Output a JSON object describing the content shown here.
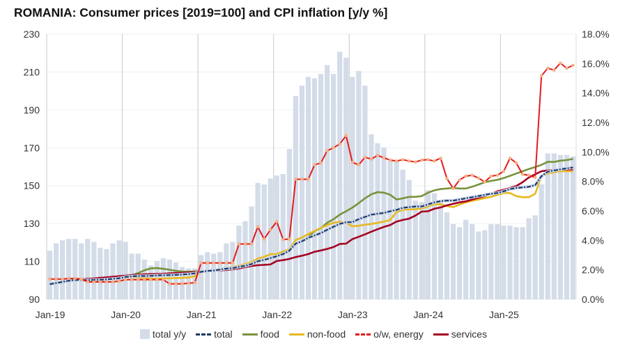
{
  "chart_data": {
    "type": "bar+line",
    "title": "ROMANIA: Consumer prices [2019=100] and CPI inflation [y/y %]",
    "x_start": "Jan-19",
    "x_end": "Dec-25",
    "x_tick_labels": [
      "Jan-19",
      "Jan-20",
      "Jan-21",
      "Jan-22",
      "Jan-23",
      "Jan-24",
      "Jan-25"
    ],
    "y_left": {
      "range": [
        90,
        230
      ],
      "ticks": [
        "90",
        "110",
        "130",
        "150",
        "170",
        "190",
        "210",
        "230"
      ]
    },
    "y_right": {
      "range": [
        0,
        18
      ],
      "ticks": [
        "0.0%",
        "2.0%",
        "4.0%",
        "6.0%",
        "8.0%",
        "10.0%",
        "12.0%",
        "14.0%",
        "16.0%",
        "18.0%"
      ]
    },
    "grid": "horizontal light, vertical at year starts",
    "legend_position": "bottom",
    "series": [
      {
        "name": "total y/y",
        "type": "bar",
        "axis": "right",
        "color": "#d3dce8",
        "values": [
          3.3,
          3.8,
          4.0,
          4.1,
          4.1,
          3.8,
          4.1,
          3.9,
          3.5,
          3.4,
          3.8,
          4.0,
          3.9,
          3.1,
          3.1,
          2.7,
          2.3,
          2.6,
          2.8,
          2.7,
          2.5,
          2.2,
          2.1,
          2.1,
          3.0,
          3.2,
          3.1,
          3.2,
          3.8,
          3.9,
          5.0,
          5.3,
          6.3,
          7.9,
          7.8,
          8.2,
          8.4,
          8.5,
          10.2,
          13.8,
          14.5,
          15.1,
          15.0,
          15.3,
          15.9,
          15.3,
          16.8,
          16.4,
          15.1,
          15.5,
          14.5,
          11.2,
          10.6,
          10.3,
          9.4,
          9.4,
          8.8,
          8.1,
          6.7,
          6.6,
          7.4,
          7.2,
          6.6,
          5.9,
          5.1,
          4.9,
          5.4,
          5.1,
          4.6,
          4.7,
          5.1,
          5.1,
          5.0,
          5.0,
          4.9,
          4.9,
          5.5,
          5.7,
          7.8,
          9.9,
          9.9,
          9.8,
          9.8,
          9.7
        ]
      },
      {
        "name": "total",
        "type": "line",
        "axis": "left",
        "color": "#1f3864",
        "values": [
          98,
          98.6,
          99.2,
          99.8,
          100.2,
          100.2,
          100.1,
          100.2,
          100.3,
          100.5,
          100.8,
          101.1,
          101.8,
          102.1,
          102.3,
          102.3,
          102.4,
          102.6,
          102.7,
          102.8,
          102.9,
          103.1,
          103.3,
          103.7,
          104.5,
          105,
          105.2,
          105.7,
          106.2,
          106.4,
          107.2,
          107.7,
          108.6,
          110.1,
          110.8,
          111.8,
          112.7,
          113.9,
          115.7,
          119.4,
          120.6,
          122.5,
          123.7,
          125,
          126.7,
          128.3,
          129.8,
          130.7,
          130.7,
          132.3,
          133.5,
          134.7,
          135.2,
          135.6,
          136.5,
          137.2,
          138.3,
          138.7,
          139,
          139,
          140.1,
          141.2,
          141.8,
          142.1,
          142.1,
          142.7,
          143.3,
          143.9,
          144.5,
          145.1,
          145.7,
          146.1,
          147,
          148.2,
          148.8,
          149.1,
          149.4,
          150.3,
          155,
          157.4,
          158,
          158.6,
          159.1,
          159.6
        ]
      },
      {
        "name": "food",
        "type": "line",
        "axis": "left",
        "color": "#77933c",
        "values": [
          98,
          98.8,
          99.5,
          100.2,
          100.5,
          100.3,
          100,
          100,
          100.2,
          100.5,
          100.8,
          101.2,
          101.9,
          102.7,
          103.8,
          105.3,
          106.3,
          106.5,
          106.1,
          105.6,
          105,
          104.7,
          104.6,
          104.7,
          104.8,
          105,
          105.3,
          105.9,
          106.5,
          107,
          107.7,
          108.3,
          109.2,
          110.2,
          111,
          111.8,
          112.5,
          113.6,
          115.3,
          119,
          120.5,
          123,
          126,
          127.5,
          130.4,
          132.3,
          134.7,
          136.5,
          138.4,
          140.8,
          143.3,
          145.4,
          146.6,
          146.3,
          145.2,
          142.7,
          143.3,
          144.1,
          144.1,
          144.5,
          146.3,
          147.5,
          148.2,
          148.5,
          148.8,
          148.5,
          148.5,
          149.4,
          150.6,
          151.8,
          152.5,
          153.1,
          154,
          155.2,
          156.4,
          157.6,
          158.8,
          159.8,
          161,
          162.6,
          162.5,
          163.2,
          163.5,
          164.1
        ]
      },
      {
        "name": "non-food",
        "type": "line",
        "axis": "left",
        "color": "#e6b91e",
        "values": [
          98,
          98.5,
          99,
          99.6,
          100.1,
          100.1,
          100,
          100.1,
          100.2,
          100.4,
          100.7,
          101,
          101.5,
          101.7,
          101.6,
          101.2,
          100.9,
          100.9,
          101,
          101.1,
          101.2,
          101.3,
          101.5,
          102.2,
          104.4,
          105.1,
          105.5,
          106,
          106.5,
          107,
          107.8,
          108.6,
          109.6,
          111.5,
          112.4,
          113.8,
          113.9,
          115.2,
          116.5,
          121.3,
          122.6,
          124.5,
          126.1,
          127.7,
          129.2,
          130.4,
          131,
          130.4,
          128.6,
          128.8,
          129.4,
          129.8,
          130.4,
          131,
          131.9,
          136,
          137.2,
          137.5,
          137.6,
          138,
          139,
          140.2,
          140.2,
          139.2,
          138.7,
          140,
          141.2,
          142,
          142.7,
          143.4,
          144.1,
          145.1,
          146.1,
          146.1,
          144.5,
          143.9,
          143.9,
          145.7,
          155,
          156.4,
          157.1,
          157.6,
          157.6,
          157.6
        ]
      },
      {
        "name": "o/w, energy",
        "type": "line",
        "axis": "left",
        "color": "#e41a1c",
        "marker_color": "#f4b183",
        "values": [
          100.7,
          100.7,
          100.7,
          101,
          101,
          100.7,
          99.2,
          99.2,
          99.2,
          99.2,
          99.2,
          99.6,
          100.4,
          100.4,
          100.4,
          100.4,
          100.4,
          100.4,
          100.4,
          98.2,
          98.2,
          98.2,
          98.5,
          98.8,
          109.2,
          109.2,
          109.2,
          109.2,
          109.2,
          109.2,
          119.2,
          119.2,
          119.2,
          128.3,
          121.8,
          126.7,
          131,
          121.6,
          121.8,
          153.4,
          153.4,
          153.4,
          161,
          162,
          168.4,
          170,
          172,
          176.4,
          162.3,
          161,
          165,
          164,
          166,
          164.7,
          163.5,
          163,
          163.7,
          163,
          162.5,
          163.5,
          163.7,
          163,
          164.5,
          153.7,
          148.5,
          153,
          155,
          155.5,
          154,
          152,
          155,
          155.5,
          157.6,
          164.5,
          162,
          156,
          155.5,
          154.3,
          208,
          212,
          211,
          214.7,
          212,
          213.5
        ]
      },
      {
        "name": "services",
        "type": "line",
        "axis": "left",
        "color": "#a50021",
        "values": [
          98,
          98.8,
          99.4,
          100,
          100.4,
          100.6,
          100.8,
          101,
          101.3,
          101.6,
          101.9,
          102.2,
          102.5,
          102.8,
          103,
          103.2,
          103.3,
          103.4,
          103.5,
          103.7,
          103.9,
          104,
          104.2,
          104.4,
          104.6,
          104.8,
          105,
          105.2,
          105.5,
          105.8,
          106.3,
          107,
          107.6,
          108,
          108.2,
          108.4,
          110.2,
          110.7,
          111.3,
          112.3,
          113,
          113.9,
          115.1,
          115.8,
          116.6,
          117.6,
          119.2,
          119.4,
          121.8,
          123,
          124.3,
          125.7,
          127,
          128.2,
          129.2,
          131,
          131.9,
          132.6,
          134.2,
          136.3,
          136.5,
          137.8,
          138.5,
          139.6,
          140.4,
          141.2,
          141.7,
          142.7,
          143.6,
          144.5,
          145.7,
          147,
          147.8,
          148.8,
          149.8,
          151.8,
          154.3,
          156,
          157.6,
          158,
          158.3,
          158.5,
          158.5,
          158.6
        ]
      }
    ]
  }
}
